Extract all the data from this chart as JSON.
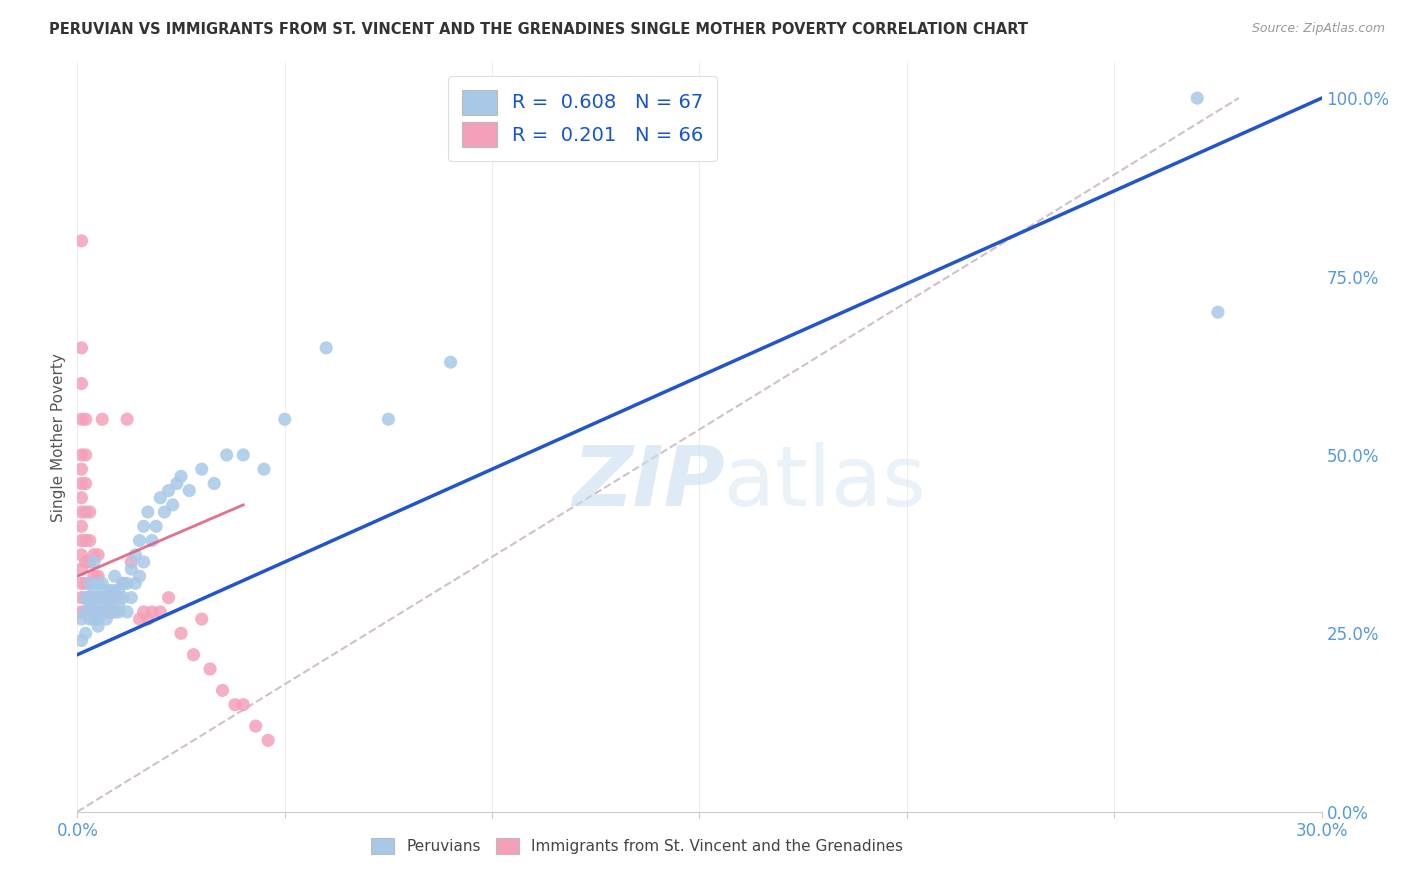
{
  "title": "PERUVIAN VS IMMIGRANTS FROM ST. VINCENT AND THE GRENADINES SINGLE MOTHER POVERTY CORRELATION CHART",
  "source": "Source: ZipAtlas.com",
  "ylabel": "Single Mother Poverty",
  "xlim": [
    0.0,
    0.3
  ],
  "ylim": [
    0.0,
    1.05
  ],
  "xticks": [
    0.0,
    0.05,
    0.1,
    0.15,
    0.2,
    0.25,
    0.3
  ],
  "ytick_labels_right": [
    "0.0%",
    "25.0%",
    "50.0%",
    "75.0%",
    "100.0%"
  ],
  "yticks_right": [
    0.0,
    0.25,
    0.5,
    0.75,
    1.0
  ],
  "blue_R": 0.608,
  "blue_N": 67,
  "pink_R": 0.201,
  "pink_N": 66,
  "blue_color": "#A8C8E8",
  "pink_color": "#F4A0B8",
  "blue_line_color": "#2255CC",
  "pink_line_color": "#E06080",
  "ref_line_color": "#D0C0C8",
  "background_color": "#FFFFFF",
  "watermark_zip": "ZIP",
  "watermark_atlas": "atlas",
  "legend_label_blue": "Peruvians",
  "legend_label_pink": "Immigrants from St. Vincent and the Grenadines",
  "blue_scatter_x": [
    0.001,
    0.001,
    0.002,
    0.002,
    0.002,
    0.003,
    0.003,
    0.003,
    0.003,
    0.004,
    0.004,
    0.004,
    0.004,
    0.005,
    0.005,
    0.005,
    0.005,
    0.005,
    0.006,
    0.006,
    0.006,
    0.006,
    0.007,
    0.007,
    0.007,
    0.008,
    0.008,
    0.008,
    0.009,
    0.009,
    0.009,
    0.01,
    0.01,
    0.01,
    0.011,
    0.011,
    0.012,
    0.012,
    0.013,
    0.013,
    0.014,
    0.014,
    0.015,
    0.015,
    0.016,
    0.016,
    0.017,
    0.018,
    0.019,
    0.02,
    0.021,
    0.022,
    0.023,
    0.024,
    0.025,
    0.027,
    0.03,
    0.033,
    0.036,
    0.04,
    0.045,
    0.05,
    0.06,
    0.075,
    0.09,
    0.27,
    0.275
  ],
  "blue_scatter_y": [
    0.24,
    0.27,
    0.28,
    0.3,
    0.25,
    0.27,
    0.29,
    0.32,
    0.3,
    0.27,
    0.29,
    0.31,
    0.35,
    0.28,
    0.3,
    0.32,
    0.27,
    0.26,
    0.28,
    0.3,
    0.32,
    0.28,
    0.29,
    0.31,
    0.27,
    0.29,
    0.31,
    0.3,
    0.28,
    0.31,
    0.33,
    0.29,
    0.31,
    0.28,
    0.3,
    0.32,
    0.32,
    0.28,
    0.3,
    0.34,
    0.32,
    0.36,
    0.38,
    0.33,
    0.4,
    0.35,
    0.42,
    0.38,
    0.4,
    0.44,
    0.42,
    0.45,
    0.43,
    0.46,
    0.47,
    0.45,
    0.48,
    0.46,
    0.5,
    0.5,
    0.48,
    0.55,
    0.65,
    0.55,
    0.63,
    1.0,
    0.7
  ],
  "pink_scatter_x": [
    0.001,
    0.001,
    0.001,
    0.001,
    0.001,
    0.001,
    0.001,
    0.001,
    0.001,
    0.001,
    0.001,
    0.001,
    0.001,
    0.001,
    0.001,
    0.001,
    0.002,
    0.002,
    0.002,
    0.002,
    0.002,
    0.002,
    0.002,
    0.002,
    0.002,
    0.003,
    0.003,
    0.003,
    0.003,
    0.003,
    0.003,
    0.004,
    0.004,
    0.004,
    0.004,
    0.005,
    0.005,
    0.005,
    0.005,
    0.006,
    0.006,
    0.006,
    0.007,
    0.007,
    0.008,
    0.008,
    0.009,
    0.01,
    0.011,
    0.012,
    0.013,
    0.015,
    0.016,
    0.017,
    0.018,
    0.02,
    0.022,
    0.025,
    0.028,
    0.03,
    0.032,
    0.035,
    0.038,
    0.04,
    0.043,
    0.046
  ],
  "pink_scatter_y": [
    0.28,
    0.3,
    0.32,
    0.34,
    0.36,
    0.38,
    0.4,
    0.42,
    0.44,
    0.46,
    0.48,
    0.5,
    0.55,
    0.6,
    0.65,
    0.8,
    0.28,
    0.3,
    0.32,
    0.35,
    0.38,
    0.42,
    0.46,
    0.5,
    0.55,
    0.28,
    0.3,
    0.32,
    0.35,
    0.38,
    0.42,
    0.27,
    0.3,
    0.33,
    0.36,
    0.28,
    0.3,
    0.33,
    0.36,
    0.28,
    0.3,
    0.55,
    0.28,
    0.3,
    0.28,
    0.3,
    0.28,
    0.3,
    0.32,
    0.55,
    0.35,
    0.27,
    0.28,
    0.27,
    0.28,
    0.28,
    0.3,
    0.25,
    0.22,
    0.27,
    0.2,
    0.17,
    0.15,
    0.15,
    0.12,
    0.1
  ]
}
